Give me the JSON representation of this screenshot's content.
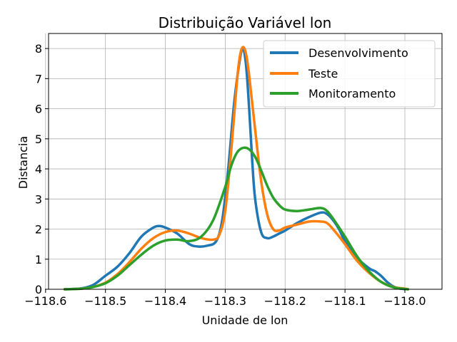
{
  "chart_data": {
    "type": "line",
    "title": "Distribuição Variável lon",
    "xlabel": "Unidade de lon",
    "ylabel": "Distancia",
    "xlim": [
      -118.595,
      -117.938
    ],
    "ylim": [
      0,
      8.5
    ],
    "xticks": [
      -118.6,
      -118.5,
      -118.4,
      -118.3,
      -118.2,
      -118.1,
      -118.0
    ],
    "xtick_labels": [
      "−118.6",
      "−118.5",
      "−118.4",
      "−118.3",
      "−118.2",
      "−118.1",
      "−118.0"
    ],
    "yticks": [
      0,
      1,
      2,
      3,
      4,
      5,
      6,
      7,
      8
    ],
    "ytick_labels": [
      "0",
      "1",
      "2",
      "3",
      "4",
      "5",
      "6",
      "7",
      "8"
    ],
    "grid": true,
    "legend_position": "top-right",
    "series": [
      {
        "name": "Desenvolvimento",
        "color": "#1f77b4",
        "x": [
          -118.568,
          -118.54,
          -118.52,
          -118.5,
          -118.48,
          -118.46,
          -118.44,
          -118.42,
          -118.41,
          -118.4,
          -118.38,
          -118.36,
          -118.345,
          -118.33,
          -118.315,
          -118.305,
          -118.295,
          -118.285,
          -118.275,
          -118.27,
          -118.265,
          -118.26,
          -118.255,
          -118.25,
          -118.24,
          -118.23,
          -118.22,
          -118.21,
          -118.2,
          -118.18,
          -118.16,
          -118.14,
          -118.13,
          -118.12,
          -118.11,
          -118.1,
          -118.08,
          -118.06,
          -118.05,
          -118.04,
          -118.03,
          -118.02,
          -118.01,
          -117.995
        ],
        "y": [
          0,
          0.03,
          0.15,
          0.45,
          0.75,
          1.2,
          1.75,
          2.05,
          2.1,
          2.05,
          1.85,
          1.5,
          1.42,
          1.45,
          1.6,
          2.3,
          4.0,
          6.2,
          7.7,
          8.0,
          7.4,
          6.0,
          4.3,
          3.0,
          1.9,
          1.7,
          1.75,
          1.85,
          1.95,
          2.2,
          2.4,
          2.55,
          2.5,
          2.3,
          2.0,
          1.6,
          1.05,
          0.7,
          0.6,
          0.45,
          0.25,
          0.1,
          0.03,
          0
        ]
      },
      {
        "name": "Teste",
        "color": "#ff7f0e",
        "x": [
          -118.568,
          -118.54,
          -118.52,
          -118.5,
          -118.48,
          -118.46,
          -118.44,
          -118.42,
          -118.4,
          -118.38,
          -118.36,
          -118.34,
          -118.32,
          -118.31,
          -118.3,
          -118.29,
          -118.28,
          -118.275,
          -118.27,
          -118.265,
          -118.26,
          -118.25,
          -118.24,
          -118.23,
          -118.22,
          -118.21,
          -118.2,
          -118.18,
          -118.16,
          -118.14,
          -118.13,
          -118.12,
          -118.1,
          -118.08,
          -118.06,
          -118.04,
          -118.02,
          -118.0,
          -117.995
        ],
        "y": [
          0,
          0.02,
          0.08,
          0.22,
          0.5,
          0.9,
          1.35,
          1.7,
          1.9,
          1.95,
          1.85,
          1.7,
          1.65,
          1.8,
          2.6,
          4.6,
          7.0,
          7.8,
          8.05,
          7.8,
          7.1,
          5.3,
          3.6,
          2.5,
          2.0,
          1.95,
          2.05,
          2.15,
          2.25,
          2.25,
          2.2,
          2.0,
          1.5,
          0.95,
          0.55,
          0.25,
          0.08,
          0.02,
          0
        ]
      },
      {
        "name": "Monitoramento",
        "color": "#2ca02c",
        "x": [
          -118.568,
          -118.54,
          -118.52,
          -118.5,
          -118.48,
          -118.46,
          -118.44,
          -118.42,
          -118.4,
          -118.38,
          -118.36,
          -118.34,
          -118.32,
          -118.3,
          -118.29,
          -118.28,
          -118.27,
          -118.26,
          -118.25,
          -118.24,
          -118.23,
          -118.22,
          -118.21,
          -118.2,
          -118.18,
          -118.16,
          -118.14,
          -118.13,
          -118.12,
          -118.1,
          -118.08,
          -118.06,
          -118.04,
          -118.02,
          -118.0,
          -117.995
        ],
        "y": [
          0,
          0.02,
          0.08,
          0.2,
          0.45,
          0.8,
          1.15,
          1.45,
          1.62,
          1.65,
          1.6,
          1.75,
          2.3,
          3.4,
          4.1,
          4.55,
          4.7,
          4.65,
          4.4,
          3.95,
          3.45,
          3.05,
          2.8,
          2.65,
          2.6,
          2.65,
          2.7,
          2.6,
          2.35,
          1.75,
          1.1,
          0.6,
          0.25,
          0.07,
          0.01,
          0
        ]
      }
    ]
  }
}
